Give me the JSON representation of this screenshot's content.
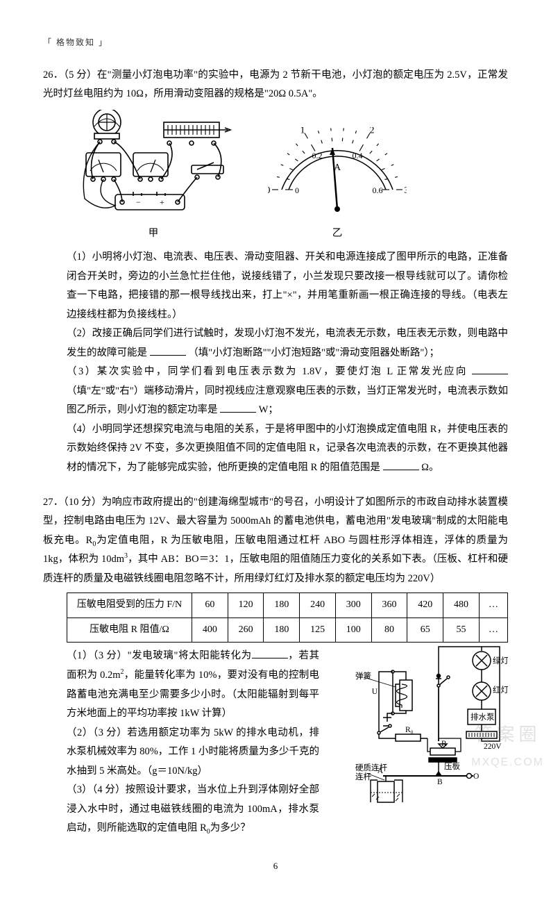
{
  "header": "「 格物致知 」",
  "page_num": "6",
  "q26": {
    "num": "26．",
    "head_score": "（5 分）",
    "intro_a": "在\"测量小灯泡电功率\"的实验中，电源为 2 节新干电池，小灯泡的额定电压为 2.5V，正常发光时灯丝电阻约为 10Ω，所用滑动变阻器的规格是\"20Ω 0.5A\"。",
    "fig_left_label": "甲",
    "fig_right_label": "乙",
    "p1": "（1）小明将小灯泡、电流表、电压表、滑动变阻器、开关和电源连接成了图甲所示的电路，正准备闭合开关时，旁边的小兰急忙拦住他，说接线错了，小兰发现只要改接一根导线就可以了。请你检查一下电路，把接错的那一根导线找出来，打上\"×\"，并用笔重新画一根正确连接的导线。（电表左边接线柱都为负接线柱。）",
    "p2_a": "（2）改接正确后同学们进行试触时，发现小灯泡不发光，电流表无示数，电压表无示数，则电路中发生的故障可能是 ",
    "p2_b": " （填\"小灯泡断路\"\"小灯泡短路\"或\"滑动变阻器处断路\"）；",
    "p3_a": "（3）某次实验中，同学们看到电压表示数为 1.8V，要使灯泡 L 正常发光应向 ",
    "p3_b": " （填\"左\"或\"右\"）端移动滑片，同时视线应注意观察电压表的示数，当灯正常发光时，电流表示数如图乙所示，则小灯泡的额定功率是 ",
    "p3_c": " W；",
    "p4_a": "（4）小明同学还想探究电流与电阻的关系，于是将甲图中的小灯泡换成定值电阻 R，并使电压表的示数始终保持 2V 不变，多次更换阻值不同的定值电阻 R，记录各次电流表的示数，在不更换其他器材的情况下，为了能够完成实验，他所更换的定值电阻 R 的阻值范围是 ",
    "p4_b": " Ω。",
    "ammeter": {
      "major_labels": [
        "0",
        "1",
        "2",
        "3"
      ],
      "minor_labels": [
        "0",
        "0.2",
        "0.4",
        "0.6"
      ],
      "unit": "A"
    }
  },
  "q27": {
    "num": "27．",
    "head_score": "（10 分）",
    "intro_a": "为响应市政府提出的\"创建海绵型城市\"的号召，小明设计了如图所示的市政自动排水装置模型，控制电路由电压为 12V、最大容量为 5000mAh 的蓄电池供电，蓄电池用\"发电玻璃\"制成的太阳能电板充电。R",
    "intro_b": "为定值电阻，R 为压敏电阻，压敏电阻通过杠杆 ABO 与圆柱形浮体相连，浮体的质量为 1kg，体积为 10dm",
    "intro_c": "，其中 AB：BO＝3：1，压敏电阻的阻值随压力变化的关系如下表。（压板、杠杆和硬质连杆的质量及电磁铁线圈电阻忽略不计，所用绿灯红灯及排水泵的额定电压均为 220V）",
    "table": {
      "row1_label": "压敏电阻受到的压力 F/N",
      "row2_label": "压敏电阻 R 阻值/Ω",
      "cols": [
        "60",
        "120",
        "180",
        "240",
        "300",
        "360",
        "420",
        "480",
        "…"
      ],
      "vals": [
        "400",
        "260",
        "180",
        "125",
        "100",
        "80",
        "65",
        "55",
        "…"
      ]
    },
    "p1_a": "（1）（3 分）\"发电玻璃\"将太阳能转化为",
    "p1_b": "，若其面积为 0.2m",
    "p1_c": "，能量转化率为 10%，要对没有电的控制电路蓄电池充满电至少需要多少小时。（太阳能辐射到每平方米地面上的平均功率按 1kW 计算）",
    "p2": "（2）（3 分）若选用额定功率为 5kW 的排水电动机，排水泵机械效率为 80%，工作 1 小时能将质量为多少千克的水抽到 5 米高处。（g＝10N/kg）",
    "p3_a": "（3）（4 分）按照设计要求，当水位上升到浮体刚好全部浸入水中时，通过电磁铁线圈的电流为 100mA，排水泵启动，则所能选取的定值电阻 R",
    "p3_b": "为多少？",
    "labels": {
      "green": "绿灯",
      "red": "红灯",
      "pump": "排水泵",
      "u": "U",
      "r0": "R₀",
      "r": "R",
      "plate": "压板",
      "a": "A",
      "b": "B",
      "o": "O",
      "volt": "220V",
      "spring": "弹簧",
      "rod": "硬质连杆"
    }
  },
  "blanks": {
    "short": "52px",
    "med": "52px"
  },
  "watermark": {
    "top": "答案圈",
    "bot": "MXQE.COM"
  }
}
